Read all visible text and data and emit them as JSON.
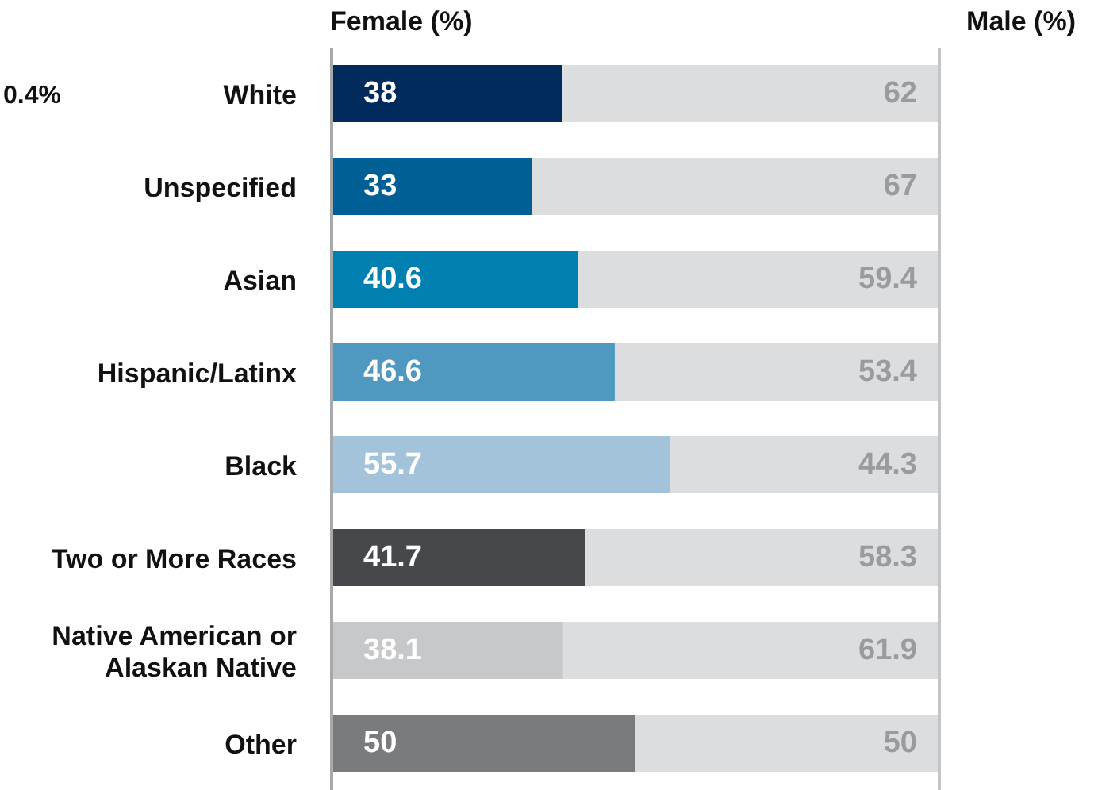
{
  "chart_data": {
    "type": "bar",
    "orientation": "horizontal",
    "stacked": true,
    "data_labels": true,
    "categories": [
      "White",
      "Unspecified",
      "Asian",
      "Hispanic/Latinx",
      "Black",
      "Two or More Races",
      "Native American or Alaskan Native",
      "Other"
    ],
    "series": [
      {
        "name": "Female (%)",
        "colors": [
          "#002b5c",
          "#005f94",
          "#0080b1",
          "#4f98c0",
          "#a2c3da",
          "#47484b",
          "#c7c8ca",
          "#7a7b7f"
        ],
        "values": [
          38,
          33,
          40.6,
          46.6,
          55.7,
          41.7,
          38.1,
          50
        ]
      },
      {
        "name": "Male (%)",
        "color": "#dcdddf",
        "values": [
          62,
          67,
          59.4,
          53.4,
          44.3,
          58.3,
          61.9,
          50
        ]
      }
    ],
    "annotations": [
      "0.4%"
    ]
  }
}
